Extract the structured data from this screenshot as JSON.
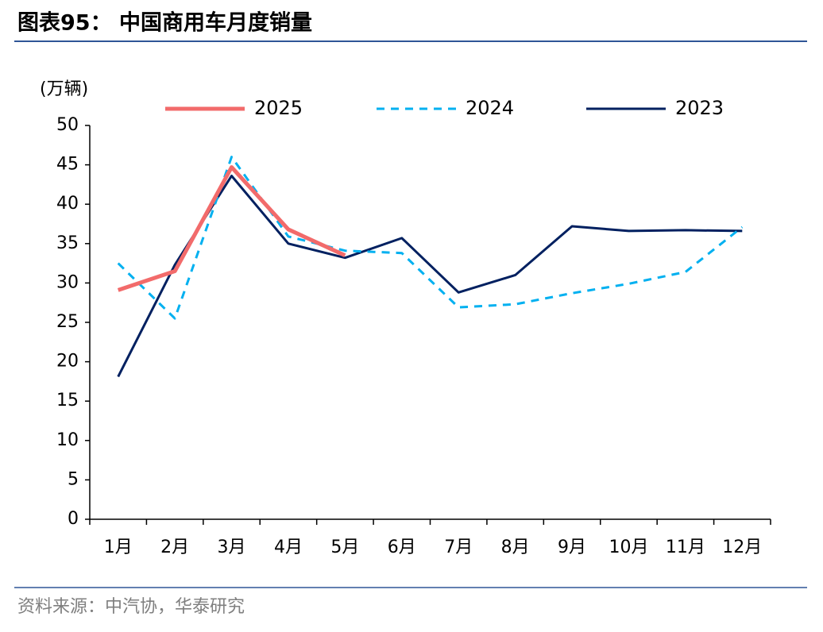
{
  "chart_data": {
    "type": "line",
    "title": "图表95： 中国商用车月度销量",
    "y_label": "(万辆)",
    "source": "资料来源：中汽协，华泰研究",
    "categories": [
      "1月",
      "2月",
      "3月",
      "4月",
      "5月",
      "6月",
      "7月",
      "8月",
      "9月",
      "10月",
      "11月",
      "12月"
    ],
    "series": [
      {
        "name": "2025",
        "color": "#f26b6b",
        "style": "solid",
        "values": [
          29.1,
          31.5,
          44.7,
          36.8,
          33.5,
          null,
          null,
          null,
          null,
          null,
          null,
          null
        ]
      },
      {
        "name": "2024",
        "color": "#00b0f0",
        "style": "dashed",
        "values": [
          32.5,
          25.5,
          46.0,
          35.9,
          34.1,
          33.8,
          26.9,
          27.3,
          28.7,
          29.9,
          31.4,
          37.1
        ]
      },
      {
        "name": "2023",
        "color": "#002060",
        "style": "solid",
        "values": [
          18.1,
          32.3,
          43.6,
          35.0,
          33.2,
          35.7,
          28.8,
          31.0,
          37.2,
          36.6,
          36.7,
          36.6
        ]
      }
    ],
    "ylim": [
      0,
      50
    ],
    "yticks": [
      0,
      5,
      10,
      15,
      20,
      25,
      30,
      35,
      40,
      45,
      50
    ],
    "grid": false,
    "legend": "top"
  }
}
